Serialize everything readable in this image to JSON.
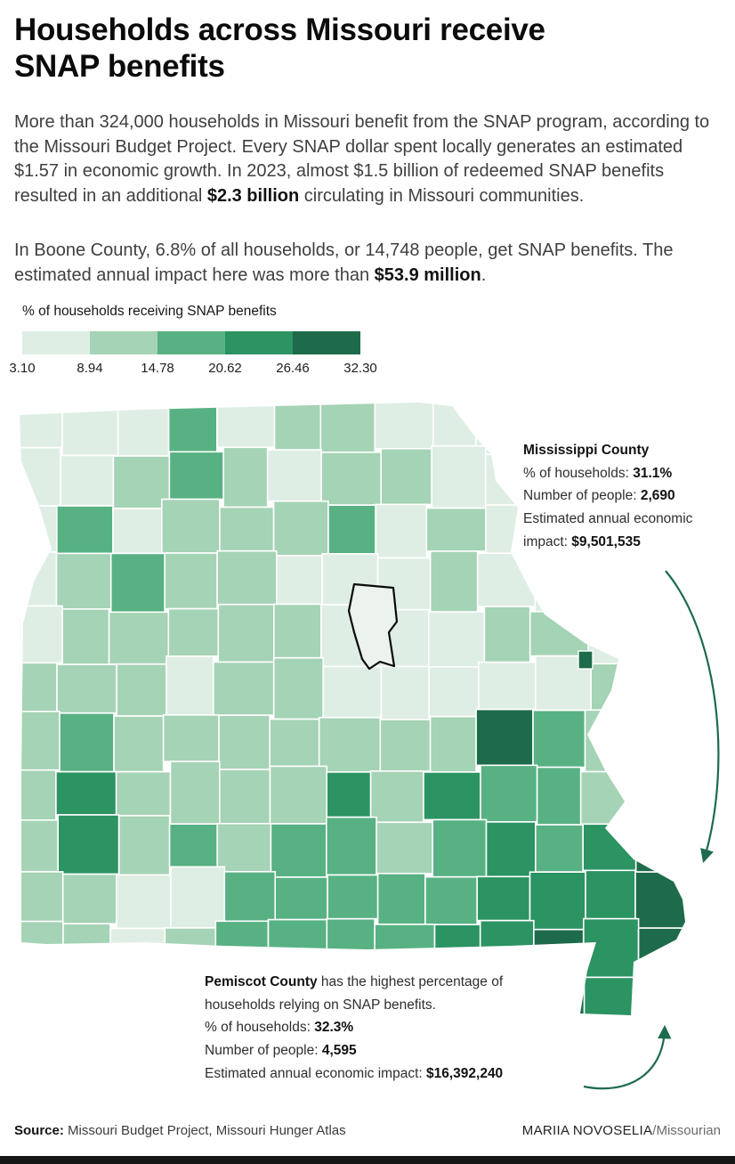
{
  "header": {
    "title": "Households across Missouri receive SNAP benefits"
  },
  "intro": {
    "paragraph1": [
      {
        "t": "More than 324,000 households in Missouri benefit from the SNAP program, according to the Missouri Budget Project. Every SNAP dollar spent locally generates an estimated $1.57 in economic growth. In 2023, almost $1.5 billion of redeemed SNAP benefits resulted in an additional "
      },
      {
        "t": "$2.3 billion",
        "b": true
      },
      {
        "t": " circulating in Missouri communities."
      }
    ],
    "paragraph2": [
      {
        "t": "In Boone County, 6.8% of all households, or 14,748 people, get SNAP benefits. The estimated annual impact here was more than "
      },
      {
        "t": "$53.9 million",
        "b": true
      },
      {
        "t": "."
      }
    ]
  },
  "legend": {
    "title": "% of households receiving SNAP benefits",
    "tick_labels": [
      "3.10",
      "8.94",
      "14.78",
      "20.62",
      "26.46",
      "32.30"
    ],
    "colors": [
      "#dfeee4",
      "#a5d3b5",
      "#58b183",
      "#2c9363",
      "#1d6b4a"
    ]
  },
  "annotations": {
    "mississippi": [
      {
        "t": "Mississippi County",
        "b": true
      },
      {
        "br": true
      },
      {
        "t": "% of households: "
      },
      {
        "t": "31.1%",
        "b": true
      },
      {
        "br": true
      },
      {
        "t": "Number of people: "
      },
      {
        "t": "2,690",
        "b": true
      },
      {
        "br": true
      },
      {
        "t": "Estimated annual economic impact: "
      },
      {
        "t": "$9,501,535",
        "b": true
      }
    ],
    "pemiscot": [
      {
        "t": "Pemiscot County",
        "b": true
      },
      {
        "t": " has the highest percentage of households relying on SNAP benefits."
      },
      {
        "br": true
      },
      {
        "t": "% of households: "
      },
      {
        "t": "32.3%",
        "b": true
      },
      {
        "br": true
      },
      {
        "t": "Number of people: "
      },
      {
        "t": "4,595",
        "b": true
      },
      {
        "br": true
      },
      {
        "t": "Estimated annual economic impact: "
      },
      {
        "t": "$16,392,240",
        "b": true
      }
    ]
  },
  "footer": {
    "source": [
      {
        "t": "Source: ",
        "b": true
      },
      {
        "t": "Missouri Budget Project, Missouri Hunger Atlas"
      }
    ],
    "credit": [
      {
        "t": "MARIIA NOVOSELIA"
      },
      {
        "t": "/Missourian",
        "m": true
      }
    ]
  },
  "chart_data": {
    "type": "heatmap",
    "subtype": "choropleth",
    "region": "Missouri counties",
    "title": "% of households receiving SNAP benefits",
    "scale": {
      "breaks": [
        3.1,
        8.94,
        14.78,
        20.62,
        26.46,
        32.3
      ],
      "colors": [
        "#dfeee4",
        "#a5d3b5",
        "#58b183",
        "#2c9363",
        "#1d6b4a"
      ],
      "arrow_color": "#1d6b4e"
    },
    "highlighted_counties": [
      {
        "name": "Boone",
        "pct_households": 6.8,
        "people": 14748,
        "impact": "$53.9 million",
        "note": "outlined in black on map"
      },
      {
        "name": "Mississippi",
        "pct_households": 31.1,
        "people": 2690,
        "impact": "$9,501,535"
      },
      {
        "name": "Pemiscot",
        "pct_households": 32.3,
        "people": 4595,
        "impact": "$16,392,240",
        "note": "highest percentage"
      }
    ],
    "county_color_grid": [
      [
        0,
        0,
        0,
        2,
        0,
        1,
        1,
        0,
        0,
        0,
        -1,
        -1,
        -1
      ],
      [
        0,
        0,
        1,
        2,
        1,
        0,
        1,
        1,
        0,
        0,
        0,
        -1,
        -1
      ],
      [
        0,
        2,
        0,
        1,
        1,
        1,
        2,
        0,
        1,
        0,
        0,
        -1,
        -1
      ],
      [
        0,
        1,
        2,
        1,
        1,
        0,
        0,
        0,
        1,
        0,
        0,
        0,
        -1
      ],
      [
        0,
        1,
        1,
        1,
        1,
        1,
        0,
        0,
        0,
        1,
        1,
        0,
        -1
      ],
      [
        1,
        1,
        1,
        0,
        1,
        1,
        0,
        0,
        0,
        0,
        0,
        1,
        -1
      ],
      [
        1,
        2,
        1,
        1,
        1,
        1,
        1,
        1,
        1,
        4,
        2,
        1,
        -1
      ],
      [
        1,
        3,
        1,
        1,
        1,
        1,
        3,
        1,
        3,
        2,
        2,
        1,
        -1
      ],
      [
        1,
        3,
        1,
        2,
        1,
        2,
        2,
        1,
        2,
        3,
        2,
        3,
        4
      ],
      [
        1,
        1,
        0,
        0,
        2,
        2,
        2,
        2,
        2,
        3,
        3,
        3,
        4
      ],
      [
        1,
        1,
        0,
        1,
        2,
        2,
        2,
        2,
        3,
        3,
        4,
        3,
        4
      ],
      [
        -1,
        -1,
        -1,
        -1,
        -1,
        -1,
        -1,
        -1,
        -1,
        -1,
        4,
        3,
        -1
      ]
    ]
  }
}
